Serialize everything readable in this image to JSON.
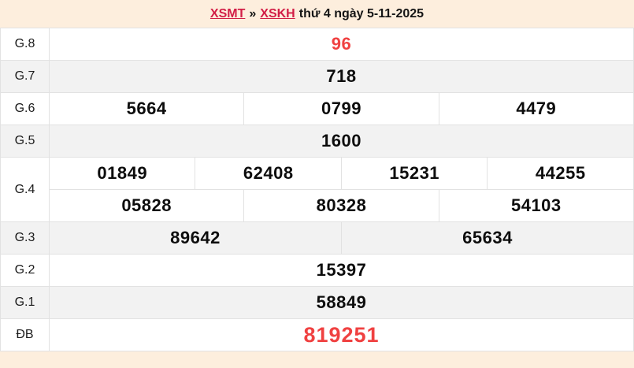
{
  "header": {
    "link_xsmt": "XSMT",
    "separator": "»",
    "link_xskh": "XSKH",
    "date_text": "thứ 4 ngày 5-11-2025"
  },
  "colors": {
    "page_bg": "#fdeedd",
    "link_red": "#d21e46",
    "number_red": "#f04141",
    "row_alt_bg": "#f2f2f2",
    "border": "#e2e2e2",
    "text": "#111111"
  },
  "table": {
    "rows": [
      {
        "label": "G.8",
        "cells": [
          "96"
        ]
      },
      {
        "label": "G.7",
        "cells": [
          "718"
        ]
      },
      {
        "label": "G.6",
        "cells": [
          "5664",
          "0799",
          "4479"
        ]
      },
      {
        "label": "G.5",
        "cells": [
          "1600"
        ]
      },
      {
        "label": "G.4",
        "cells": [
          "01849",
          "62408",
          "15231",
          "44255"
        ],
        "cells2": [
          "05828",
          "80328",
          "54103"
        ]
      },
      {
        "label": "G.3",
        "cells": [
          "89642",
          "65634"
        ]
      },
      {
        "label": "G.2",
        "cells": [
          "15397"
        ]
      },
      {
        "label": "G.1",
        "cells": [
          "58849"
        ]
      },
      {
        "label": "ĐB",
        "cells": [
          "819251"
        ]
      }
    ]
  }
}
